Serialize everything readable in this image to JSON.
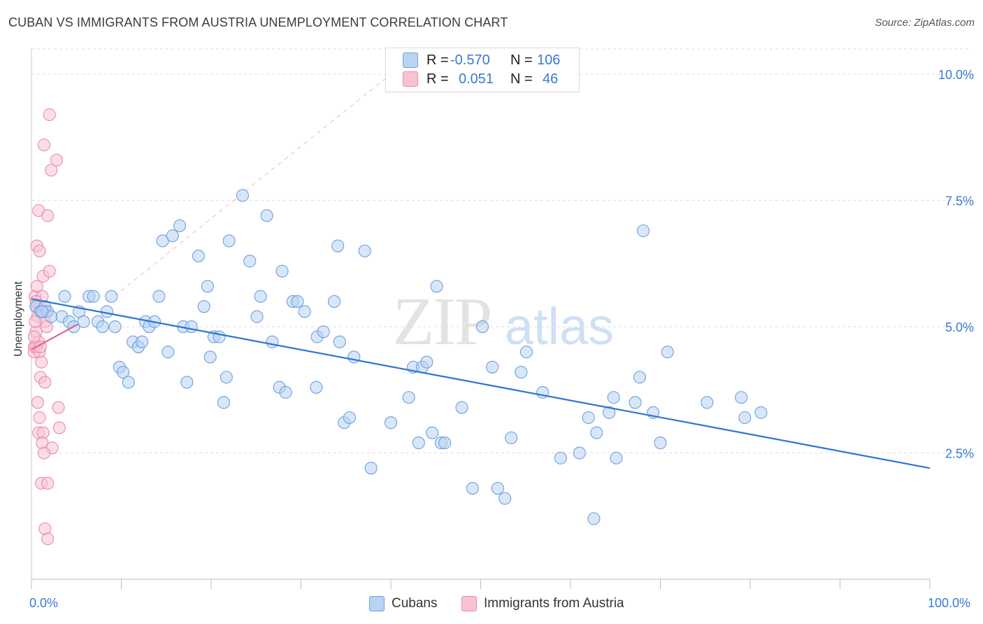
{
  "title": "CUBAN VS IMMIGRANTS FROM AUSTRIA UNEMPLOYMENT CORRELATION CHART",
  "source": "Source: ZipAtlas.com",
  "watermark": {
    "zip": "ZIP",
    "atlas": "atlas"
  },
  "legend_top": [
    {
      "r_label": "R =",
      "r_value": "-0.570",
      "n_label": "N =",
      "n_value": "106"
    },
    {
      "r_label": "R =",
      "r_value": "0.051",
      "n_label": "N =",
      "n_value": "46"
    }
  ],
  "colors": {
    "cubans_fill": "#b8d3f3",
    "cubans_stroke": "#6e9fde",
    "cubans_line": "#2f74d0",
    "austria_fill": "#f8c2d4",
    "austria_stroke": "#ea8aab",
    "austria_line": "#e2638d",
    "axis_text": "#3a78d4",
    "grid": "#dddddd"
  },
  "chart_data": {
    "type": "scatter",
    "title": "CUBAN VS IMMIGRANTS FROM AUSTRIA UNEMPLOYMENT CORRELATION CHART",
    "xlabel": "",
    "ylabel": "Unemployment",
    "xlim": [
      0,
      100
    ],
    "ylim": [
      0,
      10.5
    ],
    "x_tick_labels": [
      "0.0%",
      "100.0%"
    ],
    "y_ticks": [
      2.5,
      5.0,
      7.5,
      10.0
    ],
    "y_tick_labels": [
      "2.5%",
      "5.0%",
      "7.5%",
      "10.0%"
    ],
    "grid": true,
    "legend_position": "bottom",
    "series": [
      {
        "name": "Cubans",
        "trend": {
          "x": [
            0,
            100
          ],
          "y": [
            5.55,
            2.2
          ]
        },
        "points": [
          [
            0.5,
            5.4
          ],
          [
            1.0,
            5.3
          ],
          [
            1.5,
            5.4
          ],
          [
            1.8,
            5.3
          ],
          [
            2.2,
            5.2
          ],
          [
            3.4,
            5.2
          ],
          [
            3.7,
            5.6
          ],
          [
            4.2,
            5.1
          ],
          [
            4.7,
            5.0
          ],
          [
            5.3,
            5.3
          ],
          [
            5.8,
            5.1
          ],
          [
            6.4,
            5.6
          ],
          [
            6.9,
            5.6
          ],
          [
            7.4,
            5.1
          ],
          [
            7.9,
            5.0
          ],
          [
            8.4,
            5.3
          ],
          [
            8.9,
            5.6
          ],
          [
            9.3,
            5.0
          ],
          [
            9.8,
            4.2
          ],
          [
            10.2,
            4.1
          ],
          [
            10.8,
            3.9
          ],
          [
            11.3,
            4.7
          ],
          [
            11.9,
            4.6
          ],
          [
            12.3,
            4.7
          ],
          [
            12.7,
            5.1
          ],
          [
            13.1,
            5.0
          ],
          [
            13.7,
            5.1
          ],
          [
            14.2,
            5.6
          ],
          [
            14.6,
            6.7
          ],
          [
            15.2,
            4.5
          ],
          [
            15.7,
            6.8
          ],
          [
            16.5,
            7.0
          ],
          [
            16.9,
            5.0
          ],
          [
            17.3,
            3.9
          ],
          [
            17.8,
            5.0
          ],
          [
            18.6,
            6.4
          ],
          [
            19.2,
            5.4
          ],
          [
            19.6,
            5.8
          ],
          [
            19.9,
            4.4
          ],
          [
            20.3,
            4.8
          ],
          [
            20.9,
            4.8
          ],
          [
            21.4,
            3.5
          ],
          [
            21.7,
            4.0
          ],
          [
            22.0,
            6.7
          ],
          [
            23.5,
            7.6
          ],
          [
            24.3,
            6.3
          ],
          [
            25.1,
            5.2
          ],
          [
            25.5,
            5.6
          ],
          [
            26.2,
            7.2
          ],
          [
            26.8,
            4.7
          ],
          [
            27.6,
            3.8
          ],
          [
            27.9,
            6.1
          ],
          [
            28.3,
            3.7
          ],
          [
            29.1,
            5.5
          ],
          [
            29.6,
            5.5
          ],
          [
            30.4,
            5.3
          ],
          [
            31.7,
            3.8
          ],
          [
            31.8,
            4.8
          ],
          [
            32.5,
            4.9
          ],
          [
            33.7,
            5.5
          ],
          [
            34.1,
            6.6
          ],
          [
            34.3,
            4.7
          ],
          [
            34.8,
            3.1
          ],
          [
            35.4,
            3.2
          ],
          [
            35.9,
            4.4
          ],
          [
            37.1,
            6.5
          ],
          [
            37.8,
            2.2
          ],
          [
            40.0,
            3.1
          ],
          [
            42.0,
            3.6
          ],
          [
            42.5,
            4.2
          ],
          [
            43.1,
            2.7
          ],
          [
            43.5,
            4.2
          ],
          [
            44.0,
            4.3
          ],
          [
            44.6,
            2.9
          ],
          [
            45.1,
            5.8
          ],
          [
            45.6,
            2.7
          ],
          [
            46.0,
            2.7
          ],
          [
            47.9,
            3.4
          ],
          [
            49.1,
            1.8
          ],
          [
            50.2,
            5.0
          ],
          [
            51.3,
            4.2
          ],
          [
            51.9,
            1.8
          ],
          [
            52.7,
            1.6
          ],
          [
            53.4,
            2.8
          ],
          [
            54.5,
            4.1
          ],
          [
            55.1,
            4.5
          ],
          [
            56.9,
            3.7
          ],
          [
            58.9,
            2.4
          ],
          [
            61.0,
            2.5
          ],
          [
            62.0,
            3.2
          ],
          [
            62.6,
            1.2
          ],
          [
            62.9,
            2.9
          ],
          [
            64.3,
            3.3
          ],
          [
            64.8,
            3.6
          ],
          [
            65.1,
            2.4
          ],
          [
            67.2,
            3.5
          ],
          [
            67.7,
            4.0
          ],
          [
            68.1,
            6.9
          ],
          [
            69.2,
            3.3
          ],
          [
            70.0,
            2.7
          ],
          [
            70.8,
            4.5
          ],
          [
            75.2,
            3.5
          ],
          [
            79.0,
            3.6
          ],
          [
            79.4,
            3.2
          ],
          [
            81.2,
            3.3
          ],
          [
            1.2,
            5.3
          ]
        ]
      },
      {
        "name": "Immigrants from Austria",
        "trend": {
          "x": [
            0,
            5.2
          ],
          "y": [
            4.55,
            5.05
          ]
        },
        "points": [
          [
            0.3,
            4.6
          ],
          [
            0.5,
            4.9
          ],
          [
            0.7,
            5.2
          ],
          [
            0.9,
            5.4
          ],
          [
            0.4,
            5.6
          ],
          [
            0.6,
            5.8
          ],
          [
            0.8,
            4.7
          ],
          [
            0.3,
            4.5
          ],
          [
            0.5,
            4.6
          ],
          [
            0.9,
            4.5
          ],
          [
            1.1,
            4.3
          ],
          [
            1.3,
            5.3
          ],
          [
            1.5,
            5.1
          ],
          [
            1.7,
            5.0
          ],
          [
            0.6,
            6.6
          ],
          [
            0.9,
            6.5
          ],
          [
            1.3,
            6.0
          ],
          [
            2.0,
            6.1
          ],
          [
            0.8,
            7.3
          ],
          [
            1.8,
            7.2
          ],
          [
            2.2,
            8.1
          ],
          [
            2.8,
            8.3
          ],
          [
            2.0,
            9.2
          ],
          [
            1.4,
            8.6
          ],
          [
            1.0,
            4.0
          ],
          [
            1.5,
            3.9
          ],
          [
            0.7,
            3.5
          ],
          [
            3.0,
            3.4
          ],
          [
            0.9,
            3.2
          ],
          [
            0.8,
            2.9
          ],
          [
            1.3,
            2.9
          ],
          [
            3.1,
            3.0
          ],
          [
            1.2,
            2.7
          ],
          [
            2.3,
            2.6
          ],
          [
            1.4,
            2.5
          ],
          [
            1.1,
            1.9
          ],
          [
            1.8,
            1.9
          ],
          [
            1.5,
            1.0
          ],
          [
            1.8,
            0.8
          ],
          [
            0.4,
            5.1
          ],
          [
            0.6,
            5.4
          ],
          [
            1.0,
            4.6
          ],
          [
            1.2,
            5.6
          ],
          [
            0.5,
            5.5
          ],
          [
            1.6,
            5.3
          ],
          [
            0.3,
            4.8
          ]
        ]
      }
    ]
  },
  "legend_bottom": [
    {
      "label": "Cubans"
    },
    {
      "label": "Immigrants from Austria"
    }
  ],
  "axis": {
    "x_min_label": "0.0%",
    "x_max_label": "100.0%"
  }
}
